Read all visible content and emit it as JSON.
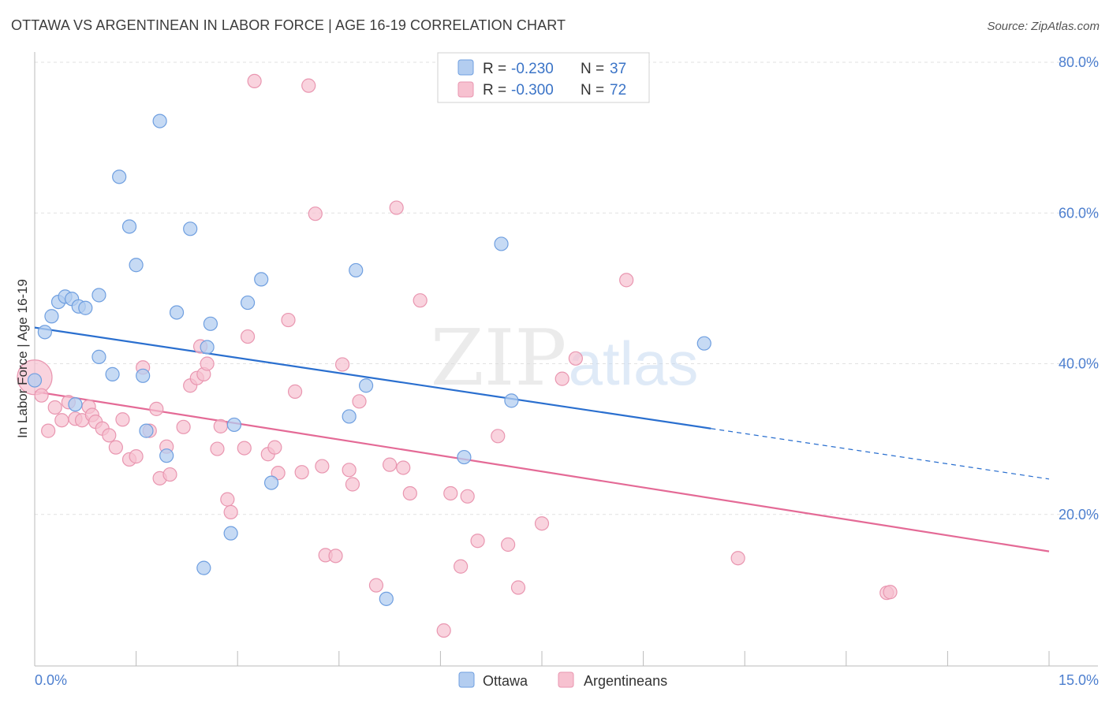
{
  "title": "OTTAWA VS ARGENTINEAN IN LABOR FORCE | AGE 16-19 CORRELATION CHART",
  "source": "Source: ZipAtlas.com",
  "watermark": {
    "zip": "ZIP",
    "atlas": "atlas"
  },
  "colors": {
    "ottawa_fill": "#b3cdf0",
    "ottawa_stroke": "#6f9fe0",
    "ottawa_line": "#2a6fcf",
    "arg_fill": "#f7c1d0",
    "arg_stroke": "#e996b0",
    "arg_line": "#e46a96",
    "tick_label": "#4d7fcf",
    "grid": "#e1e1e1"
  },
  "legend": {
    "ottawa": {
      "r_label": "R =",
      "r_value": "-0.230",
      "n_label": "N =",
      "n_value": "37"
    },
    "arg": {
      "r_label": "R =",
      "r_value": "-0.300",
      "n_label": "N =",
      "n_value": "72"
    }
  },
  "bottom_legend": {
    "ottawa": "Ottawa",
    "arg": "Argentineans"
  },
  "chart_data": {
    "type": "scatter",
    "title": "OTTAWA VS ARGENTINEAN IN LABOR FORCE | AGE 16-19 CORRELATION CHART",
    "xlabel": "",
    "ylabel": "In Labor Force | Age 16-19",
    "xlim": [
      0,
      15
    ],
    "ylim": [
      0,
      80
    ],
    "x_tick_labels": [
      "0.0%",
      "15.0%"
    ],
    "y_ticks": [
      20,
      40,
      60,
      80
    ],
    "y_tick_labels": [
      "20.0%",
      "40.0%",
      "60.0%",
      "80.0%"
    ],
    "grid": true,
    "legend_position": "top-center",
    "series": [
      {
        "name": "Ottawa",
        "r": -0.23,
        "n": 37,
        "trend": {
          "x": [
            0,
            10
          ],
          "y": [
            44.8,
            31.4
          ],
          "dashed_to_x": 15,
          "dashed_y": 24.7
        },
        "points": [
          {
            "x": 0.0,
            "y": 37.8
          },
          {
            "x": 0.15,
            "y": 44.2
          },
          {
            "x": 0.25,
            "y": 46.3
          },
          {
            "x": 0.35,
            "y": 48.2
          },
          {
            "x": 0.45,
            "y": 48.9
          },
          {
            "x": 0.55,
            "y": 48.6
          },
          {
            "x": 0.65,
            "y": 47.6
          },
          {
            "x": 0.75,
            "y": 47.4
          },
          {
            "x": 0.95,
            "y": 49.1
          },
          {
            "x": 0.6,
            "y": 34.6
          },
          {
            "x": 0.95,
            "y": 40.9
          },
          {
            "x": 1.15,
            "y": 38.6
          },
          {
            "x": 1.25,
            "y": 64.8
          },
          {
            "x": 1.4,
            "y": 58.2
          },
          {
            "x": 1.5,
            "y": 53.1
          },
          {
            "x": 1.6,
            "y": 38.4
          },
          {
            "x": 1.65,
            "y": 31.1
          },
          {
            "x": 1.85,
            "y": 72.2
          },
          {
            "x": 1.95,
            "y": 27.8
          },
          {
            "x": 2.1,
            "y": 46.8
          },
          {
            "x": 2.3,
            "y": 57.9
          },
          {
            "x": 2.5,
            "y": 12.9
          },
          {
            "x": 2.55,
            "y": 42.2
          },
          {
            "x": 2.6,
            "y": 45.3
          },
          {
            "x": 2.9,
            "y": 17.5
          },
          {
            "x": 2.95,
            "y": 31.9
          },
          {
            "x": 3.15,
            "y": 48.1
          },
          {
            "x": 3.35,
            "y": 51.2
          },
          {
            "x": 3.5,
            "y": 24.2
          },
          {
            "x": 4.65,
            "y": 33.0
          },
          {
            "x": 4.75,
            "y": 52.4
          },
          {
            "x": 4.9,
            "y": 37.1
          },
          {
            "x": 5.2,
            "y": 8.8
          },
          {
            "x": 6.35,
            "y": 27.6
          },
          {
            "x": 6.9,
            "y": 55.9
          },
          {
            "x": 7.05,
            "y": 35.1
          },
          {
            "x": 9.9,
            "y": 42.7
          }
        ]
      },
      {
        "name": "Argentineans",
        "r": -0.3,
        "n": 72,
        "trend": {
          "x": [
            0,
            15
          ],
          "y": [
            36.3,
            15.1
          ]
        },
        "points": [
          {
            "x": 0.0,
            "y": 38.2,
            "big": true
          },
          {
            "x": 0.1,
            "y": 35.8
          },
          {
            "x": 0.2,
            "y": 31.1
          },
          {
            "x": 0.3,
            "y": 34.2
          },
          {
            "x": 0.4,
            "y": 32.5
          },
          {
            "x": 0.5,
            "y": 34.9
          },
          {
            "x": 0.6,
            "y": 32.7
          },
          {
            "x": 0.7,
            "y": 32.5
          },
          {
            "x": 0.8,
            "y": 34.3
          },
          {
            "x": 0.85,
            "y": 33.2
          },
          {
            "x": 0.9,
            "y": 32.3
          },
          {
            "x": 1.0,
            "y": 31.4
          },
          {
            "x": 1.1,
            "y": 30.5
          },
          {
            "x": 1.2,
            "y": 28.9
          },
          {
            "x": 1.3,
            "y": 32.6
          },
          {
            "x": 1.4,
            "y": 27.3
          },
          {
            "x": 1.5,
            "y": 27.7
          },
          {
            "x": 1.6,
            "y": 39.5
          },
          {
            "x": 1.7,
            "y": 31.1
          },
          {
            "x": 1.8,
            "y": 34.0
          },
          {
            "x": 1.85,
            "y": 24.8
          },
          {
            "x": 1.95,
            "y": 29.0
          },
          {
            "x": 2.0,
            "y": 25.3
          },
          {
            "x": 2.2,
            "y": 31.6
          },
          {
            "x": 2.3,
            "y": 37.1
          },
          {
            "x": 2.4,
            "y": 38.1
          },
          {
            "x": 2.45,
            "y": 42.3
          },
          {
            "x": 2.5,
            "y": 38.6
          },
          {
            "x": 2.55,
            "y": 40.0
          },
          {
            "x": 2.7,
            "y": 28.7
          },
          {
            "x": 2.75,
            "y": 31.7
          },
          {
            "x": 2.85,
            "y": 22.0
          },
          {
            "x": 2.9,
            "y": 20.3
          },
          {
            "x": 3.1,
            "y": 28.8
          },
          {
            "x": 3.15,
            "y": 43.6
          },
          {
            "x": 3.25,
            "y": 77.5
          },
          {
            "x": 3.45,
            "y": 28.0
          },
          {
            "x": 3.55,
            "y": 28.9
          },
          {
            "x": 3.6,
            "y": 25.5
          },
          {
            "x": 3.75,
            "y": 45.8
          },
          {
            "x": 3.85,
            "y": 36.3
          },
          {
            "x": 3.95,
            "y": 25.6
          },
          {
            "x": 4.05,
            "y": 76.9
          },
          {
            "x": 4.15,
            "y": 59.9
          },
          {
            "x": 4.25,
            "y": 26.4
          },
          {
            "x": 4.3,
            "y": 14.6
          },
          {
            "x": 4.45,
            "y": 14.5
          },
          {
            "x": 4.55,
            "y": 39.9
          },
          {
            "x": 4.65,
            "y": 25.9
          },
          {
            "x": 4.7,
            "y": 24.0
          },
          {
            "x": 4.8,
            "y": 35.0
          },
          {
            "x": 5.05,
            "y": 10.6
          },
          {
            "x": 5.25,
            "y": 26.6
          },
          {
            "x": 5.35,
            "y": 60.7
          },
          {
            "x": 5.45,
            "y": 26.2
          },
          {
            "x": 5.55,
            "y": 22.8
          },
          {
            "x": 5.7,
            "y": 48.4
          },
          {
            "x": 6.05,
            "y": 4.6
          },
          {
            "x": 6.15,
            "y": 22.8
          },
          {
            "x": 6.3,
            "y": 13.1
          },
          {
            "x": 6.4,
            "y": 22.4
          },
          {
            "x": 6.55,
            "y": 16.5
          },
          {
            "x": 6.85,
            "y": 30.4
          },
          {
            "x": 7.0,
            "y": 16.0
          },
          {
            "x": 7.15,
            "y": 10.3
          },
          {
            "x": 7.5,
            "y": 18.8
          },
          {
            "x": 7.8,
            "y": 38.0
          },
          {
            "x": 8.0,
            "y": 40.7
          },
          {
            "x": 8.75,
            "y": 51.1
          },
          {
            "x": 10.4,
            "y": 14.2
          },
          {
            "x": 12.6,
            "y": 9.6
          },
          {
            "x": 12.65,
            "y": 9.7
          }
        ]
      }
    ]
  }
}
